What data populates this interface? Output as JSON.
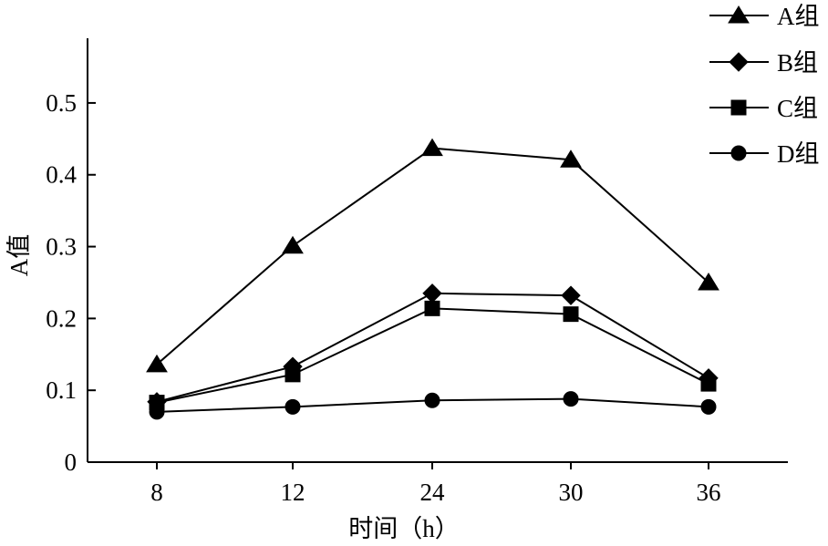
{
  "chart_data": {
    "type": "line",
    "xlabel": "时间（h）",
    "ylabel": "A值",
    "x_categories": [
      "8",
      "12",
      "24",
      "30",
      "36"
    ],
    "y_ticks": [
      "0",
      "0.1",
      "0.2",
      "0.3",
      "0.4",
      "0.5"
    ],
    "ylim": [
      0,
      0.59
    ],
    "grid": false,
    "legend_position": "top-right",
    "series": [
      {
        "name": "A组",
        "marker": "triangle",
        "values": [
          0.136,
          0.301,
          0.437,
          0.421,
          0.25
        ]
      },
      {
        "name": "B组",
        "marker": "diamond",
        "values": [
          0.084,
          0.133,
          0.235,
          0.232,
          0.117
        ]
      },
      {
        "name": "C组",
        "marker": "square",
        "values": [
          0.083,
          0.122,
          0.214,
          0.206,
          0.109
        ]
      },
      {
        "name": "D组",
        "marker": "circle",
        "values": [
          0.07,
          0.077,
          0.086,
          0.088,
          0.077
        ]
      }
    ],
    "line_color": "#000000"
  }
}
